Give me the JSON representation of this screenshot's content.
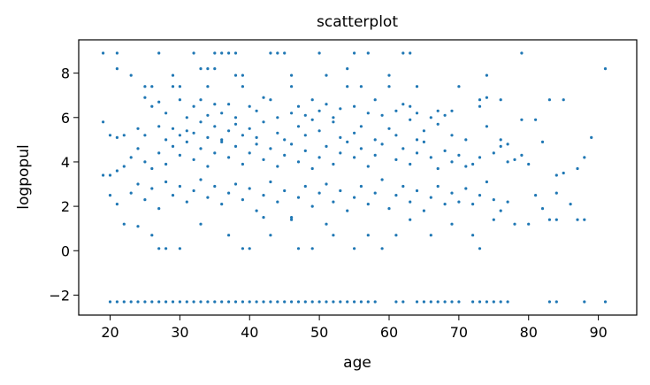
{
  "chart_data": {
    "type": "scatter",
    "title": "scatterplot",
    "xlabel": "age",
    "ylabel": "logpopul",
    "xlim": [
      15.5,
      95.5
    ],
    "ylim": [
      -2.9,
      9.5
    ],
    "xticks": [
      20,
      30,
      40,
      50,
      60,
      70,
      80,
      90
    ],
    "yticks": [
      -2,
      0,
      2,
      4,
      6,
      8
    ],
    "xtick_labels": [
      "20",
      "30",
      "40",
      "50",
      "60",
      "70",
      "80",
      "90"
    ],
    "ytick_labels": [
      "−2",
      "0",
      "2",
      "4",
      "6",
      "8"
    ],
    "grid": false,
    "legend": "none",
    "point_color": "#1f77b4",
    "points": [
      [
        19,
        8.9
      ],
      [
        21,
        8.9
      ],
      [
        27,
        8.9
      ],
      [
        32,
        8.9
      ],
      [
        35,
        8.9
      ],
      [
        36,
        8.9
      ],
      [
        37,
        8.9
      ],
      [
        38,
        8.9
      ],
      [
        43,
        8.9
      ],
      [
        44,
        8.9
      ],
      [
        45,
        8.9
      ],
      [
        50,
        8.9
      ],
      [
        55,
        8.9
      ],
      [
        57,
        8.9
      ],
      [
        62,
        8.9
      ],
      [
        63,
        8.9
      ],
      [
        79,
        8.9
      ],
      [
        21,
        8.2
      ],
      [
        33,
        8.2
      ],
      [
        34,
        8.2
      ],
      [
        35,
        8.2
      ],
      [
        54,
        8.2
      ],
      [
        91,
        8.2
      ],
      [
        23,
        7.9
      ],
      [
        29,
        7.9
      ],
      [
        38,
        7.9
      ],
      [
        39,
        7.9
      ],
      [
        46,
        7.9
      ],
      [
        51,
        7.9
      ],
      [
        60,
        7.9
      ],
      [
        74,
        7.9
      ],
      [
        25,
        7.4
      ],
      [
        26,
        7.4
      ],
      [
        29,
        7.4
      ],
      [
        30,
        7.4
      ],
      [
        34,
        7.4
      ],
      [
        39,
        7.4
      ],
      [
        46,
        7.4
      ],
      [
        54,
        7.4
      ],
      [
        56,
        7.4
      ],
      [
        60,
        7.4
      ],
      [
        64,
        7.4
      ],
      [
        70,
        7.4
      ],
      [
        73,
        6.8
      ],
      [
        74,
        6.9
      ],
      [
        76,
        6.8
      ],
      [
        83,
        6.8
      ],
      [
        85,
        6.8
      ],
      [
        25,
        6.9
      ],
      [
        26,
        6.5
      ],
      [
        27,
        6.7
      ],
      [
        28,
        6.2
      ],
      [
        30,
        6.8
      ],
      [
        31,
        6.0
      ],
      [
        32,
        6.5
      ],
      [
        33,
        6.8
      ],
      [
        34,
        6.1
      ],
      [
        35,
        6.6
      ],
      [
        36,
        6.2
      ],
      [
        37,
        6.6
      ],
      [
        38,
        6.0
      ],
      [
        40,
        6.5
      ],
      [
        41,
        6.3
      ],
      [
        42,
        6.9
      ],
      [
        43,
        6.8
      ],
      [
        44,
        6.0
      ],
      [
        46,
        6.2
      ],
      [
        47,
        6.5
      ],
      [
        48,
        6.1
      ],
      [
        49,
        6.8
      ],
      [
        50,
        6.3
      ],
      [
        51,
        6.6
      ],
      [
        52,
        6.0
      ],
      [
        53,
        6.4
      ],
      [
        55,
        6.5
      ],
      [
        57,
        6.2
      ],
      [
        58,
        6.8
      ],
      [
        59,
        6.1
      ],
      [
        61,
        6.3
      ],
      [
        62,
        6.6
      ],
      [
        63,
        6.5
      ],
      [
        64,
        6.2
      ],
      [
        66,
        6.0
      ],
      [
        67,
        6.3
      ],
      [
        68,
        6.1
      ],
      [
        69,
        6.3
      ],
      [
        73,
        6.5
      ],
      [
        79,
        5.9
      ],
      [
        81,
        5.9
      ],
      [
        19,
        5.8
      ],
      [
        20,
        5.2
      ],
      [
        21,
        5.1
      ],
      [
        22,
        5.2
      ],
      [
        24,
        5.5
      ],
      [
        25,
        5.2
      ],
      [
        27,
        5.6
      ],
      [
        28,
        5.0
      ],
      [
        29,
        5.5
      ],
      [
        30,
        5.2
      ],
      [
        31,
        5.4
      ],
      [
        32,
        5.3
      ],
      [
        33,
        5.8
      ],
      [
        34,
        5.1
      ],
      [
        35,
        5.6
      ],
      [
        36,
        5.0
      ],
      [
        37,
        5.4
      ],
      [
        38,
        5.7
      ],
      [
        39,
        5.2
      ],
      [
        40,
        5.5
      ],
      [
        41,
        5.1
      ],
      [
        42,
        5.8
      ],
      [
        44,
        5.3
      ],
      [
        45,
        5.0
      ],
      [
        47,
        5.6
      ],
      [
        48,
        5.2
      ],
      [
        49,
        5.9
      ],
      [
        50,
        5.4
      ],
      [
        52,
        5.8
      ],
      [
        53,
        5.1
      ],
      [
        55,
        5.3
      ],
      [
        56,
        5.6
      ],
      [
        58,
        5.0
      ],
      [
        60,
        5.5
      ],
      [
        61,
        5.2
      ],
      [
        63,
        5.9
      ],
      [
        64,
        5.0
      ],
      [
        65,
        5.4
      ],
      [
        67,
        5.7
      ],
      [
        69,
        5.2
      ],
      [
        71,
        5.0
      ],
      [
        74,
        5.6
      ],
      [
        76,
        5.0
      ],
      [
        77,
        4.8
      ],
      [
        82,
        4.9
      ],
      [
        89,
        5.1
      ],
      [
        19,
        3.4
      ],
      [
        20,
        3.4
      ],
      [
        21,
        3.6
      ],
      [
        22,
        3.8
      ],
      [
        23,
        4.2
      ],
      [
        24,
        4.6
      ],
      [
        25,
        4.0
      ],
      [
        26,
        3.7
      ],
      [
        27,
        4.4
      ],
      [
        28,
        3.9
      ],
      [
        29,
        4.7
      ],
      [
        30,
        4.3
      ],
      [
        31,
        4.9
      ],
      [
        32,
        4.1
      ],
      [
        33,
        4.6
      ],
      [
        34,
        3.8
      ],
      [
        35,
        4.4
      ],
      [
        36,
        4.9
      ],
      [
        37,
        4.2
      ],
      [
        38,
        4.7
      ],
      [
        39,
        3.9
      ],
      [
        40,
        4.4
      ],
      [
        41,
        4.8
      ],
      [
        42,
        4.1
      ],
      [
        43,
        4.6
      ],
      [
        44,
        3.8
      ],
      [
        45,
        4.3
      ],
      [
        46,
        4.8
      ],
      [
        47,
        4.0
      ],
      [
        48,
        4.5
      ],
      [
        49,
        3.7
      ],
      [
        50,
        4.2
      ],
      [
        51,
        4.7
      ],
      [
        52,
        3.9
      ],
      [
        53,
        4.4
      ],
      [
        54,
        4.9
      ],
      [
        55,
        4.2
      ],
      [
        56,
        4.6
      ],
      [
        57,
        3.8
      ],
      [
        58,
        4.3
      ],
      [
        59,
        4.8
      ],
      [
        61,
        4.1
      ],
      [
        62,
        4.6
      ],
      [
        63,
        3.9
      ],
      [
        64,
        4.4
      ],
      [
        65,
        4.9
      ],
      [
        66,
        4.2
      ],
      [
        67,
        3.7
      ],
      [
        68,
        4.5
      ],
      [
        69,
        4.0
      ],
      [
        70,
        4.3
      ],
      [
        71,
        3.8
      ],
      [
        72,
        3.9
      ],
      [
        73,
        4.2
      ],
      [
        75,
        4.4
      ],
      [
        76,
        4.7
      ],
      [
        77,
        4.0
      ],
      [
        78,
        4.1
      ],
      [
        79,
        4.3
      ],
      [
        80,
        3.9
      ],
      [
        84,
        3.4
      ],
      [
        85,
        3.5
      ],
      [
        87,
        3.7
      ],
      [
        88,
        4.2
      ],
      [
        20,
        2.5
      ],
      [
        21,
        2.1
      ],
      [
        22,
        1.2
      ],
      [
        23,
        2.6
      ],
      [
        24,
        3.0
      ],
      [
        25,
        2.3
      ],
      [
        26,
        2.8
      ],
      [
        27,
        1.9
      ],
      [
        28,
        3.1
      ],
      [
        29,
        2.5
      ],
      [
        30,
        2.9
      ],
      [
        31,
        2.2
      ],
      [
        32,
        2.7
      ],
      [
        33,
        3.2
      ],
      [
        34,
        2.4
      ],
      [
        35,
        2.9
      ],
      [
        36,
        2.1
      ],
      [
        37,
        2.6
      ],
      [
        38,
        3.0
      ],
      [
        39,
        2.3
      ],
      [
        40,
        2.8
      ],
      [
        41,
        1.8
      ],
      [
        42,
        2.5
      ],
      [
        43,
        3.1
      ],
      [
        44,
        2.2
      ],
      [
        45,
        2.7
      ],
      [
        46,
        1.5
      ],
      [
        47,
        2.4
      ],
      [
        48,
        2.9
      ],
      [
        49,
        2.0
      ],
      [
        50,
        2.6
      ],
      [
        51,
        3.0
      ],
      [
        52,
        2.2
      ],
      [
        53,
        2.7
      ],
      [
        54,
        1.8
      ],
      [
        55,
        2.4
      ],
      [
        56,
        2.9
      ],
      [
        57,
        2.1
      ],
      [
        58,
        2.6
      ],
      [
        59,
        3.2
      ],
      [
        60,
        1.9
      ],
      [
        61,
        2.5
      ],
      [
        62,
        2.9
      ],
      [
        63,
        2.2
      ],
      [
        64,
        2.7
      ],
      [
        65,
        1.8
      ],
      [
        66,
        2.4
      ],
      [
        67,
        2.9
      ],
      [
        68,
        2.1
      ],
      [
        69,
        2.6
      ],
      [
        70,
        2.2
      ],
      [
        71,
        2.8
      ],
      [
        72,
        2.1
      ],
      [
        73,
        2.5
      ],
      [
        74,
        3.1
      ],
      [
        75,
        2.3
      ],
      [
        76,
        1.8
      ],
      [
        77,
        2.2
      ],
      [
        81,
        2.5
      ],
      [
        82,
        1.9
      ],
      [
        84,
        2.6
      ],
      [
        86,
        2.1
      ],
      [
        87,
        1.4
      ],
      [
        88,
        1.4
      ],
      [
        24,
        1.1
      ],
      [
        26,
        0.7
      ],
      [
        27,
        0.1
      ],
      [
        28,
        0.1
      ],
      [
        30,
        0.1
      ],
      [
        33,
        1.2
      ],
      [
        37,
        0.7
      ],
      [
        39,
        0.1
      ],
      [
        40,
        0.1
      ],
      [
        42,
        1.5
      ],
      [
        43,
        0.7
      ],
      [
        46,
        1.4
      ],
      [
        47,
        0.1
      ],
      [
        49,
        0.1
      ],
      [
        51,
        1.2
      ],
      [
        52,
        0.7
      ],
      [
        55,
        0.1
      ],
      [
        57,
        0.7
      ],
      [
        59,
        0.1
      ],
      [
        61,
        0.7
      ],
      [
        63,
        1.4
      ],
      [
        66,
        0.7
      ],
      [
        69,
        1.2
      ],
      [
        72,
        0.7
      ],
      [
        73,
        0.1
      ],
      [
        75,
        1.4
      ],
      [
        78,
        1.2
      ],
      [
        80,
        1.2
      ],
      [
        83,
        1.4
      ],
      [
        84,
        1.4
      ],
      [
        20,
        -2.3
      ],
      [
        21,
        -2.3
      ],
      [
        22,
        -2.3
      ],
      [
        23,
        -2.3
      ],
      [
        24,
        -2.3
      ],
      [
        25,
        -2.3
      ],
      [
        26,
        -2.3
      ],
      [
        27,
        -2.3
      ],
      [
        28,
        -2.3
      ],
      [
        29,
        -2.3
      ],
      [
        30,
        -2.3
      ],
      [
        31,
        -2.3
      ],
      [
        32,
        -2.3
      ],
      [
        33,
        -2.3
      ],
      [
        34,
        -2.3
      ],
      [
        35,
        -2.3
      ],
      [
        36,
        -2.3
      ],
      [
        37,
        -2.3
      ],
      [
        38,
        -2.3
      ],
      [
        39,
        -2.3
      ],
      [
        40,
        -2.3
      ],
      [
        41,
        -2.3
      ],
      [
        42,
        -2.3
      ],
      [
        43,
        -2.3
      ],
      [
        44,
        -2.3
      ],
      [
        45,
        -2.3
      ],
      [
        46,
        -2.3
      ],
      [
        47,
        -2.3
      ],
      [
        48,
        -2.3
      ],
      [
        49,
        -2.3
      ],
      [
        50,
        -2.3
      ],
      [
        51,
        -2.3
      ],
      [
        52,
        -2.3
      ],
      [
        53,
        -2.3
      ],
      [
        54,
        -2.3
      ],
      [
        55,
        -2.3
      ],
      [
        56,
        -2.3
      ],
      [
        57,
        -2.3
      ],
      [
        58,
        -2.3
      ],
      [
        61,
        -2.3
      ],
      [
        62,
        -2.3
      ],
      [
        64,
        -2.3
      ],
      [
        65,
        -2.3
      ],
      [
        66,
        -2.3
      ],
      [
        67,
        -2.3
      ],
      [
        68,
        -2.3
      ],
      [
        69,
        -2.3
      ],
      [
        70,
        -2.3
      ],
      [
        72,
        -2.3
      ],
      [
        73,
        -2.3
      ],
      [
        74,
        -2.3
      ],
      [
        75,
        -2.3
      ],
      [
        76,
        -2.3
      ],
      [
        77,
        -2.3
      ],
      [
        83,
        -2.3
      ],
      [
        84,
        -2.3
      ],
      [
        88,
        -2.3
      ],
      [
        91,
        -2.3
      ]
    ]
  }
}
